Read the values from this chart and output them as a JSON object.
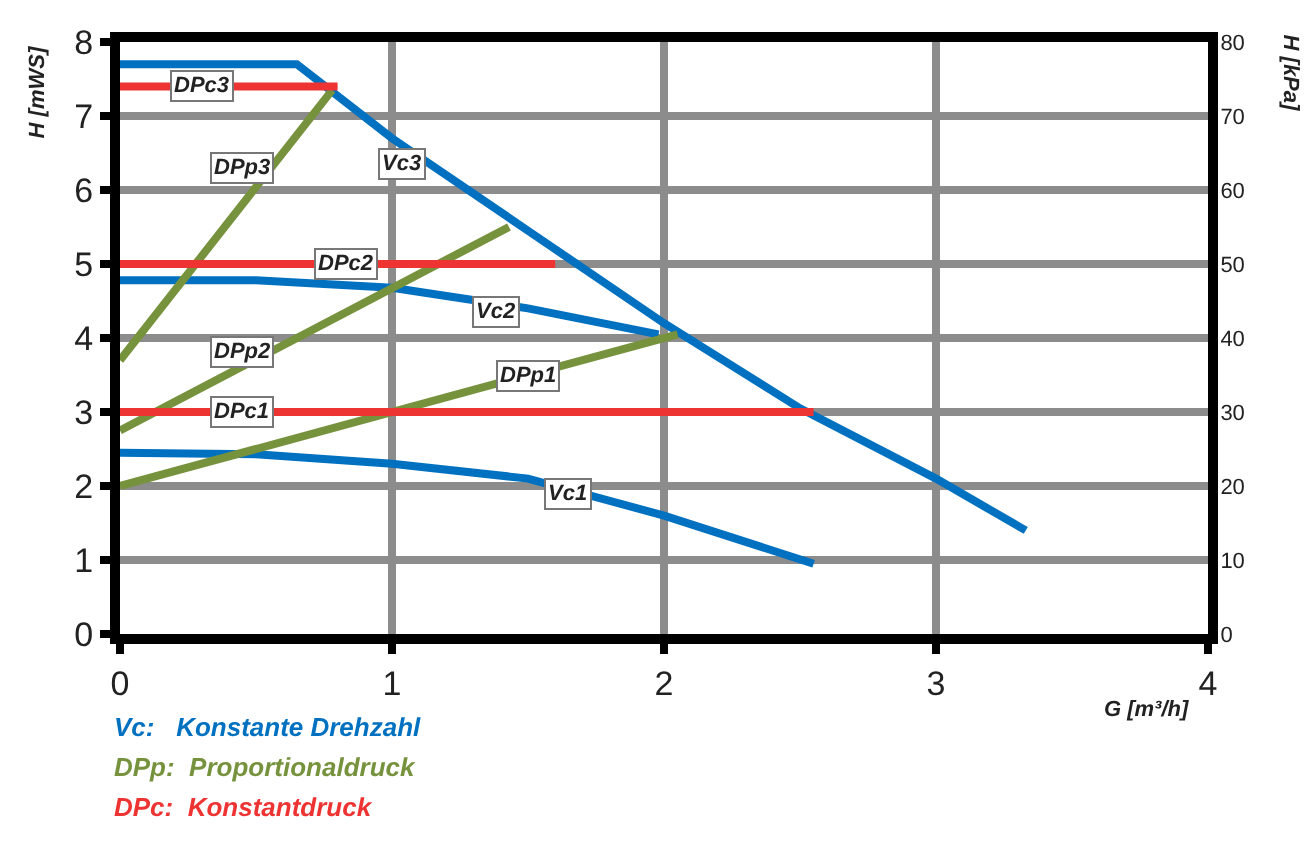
{
  "chart_data": {
    "type": "line",
    "xlabel": "G [m³/h]",
    "ylabel": "H [mWS]",
    "y2label": "H [kPa]",
    "xlim": [
      0,
      4
    ],
    "xticks": [
      0,
      1,
      2,
      3,
      4
    ],
    "ylim": [
      0,
      8
    ],
    "yticks": [
      0,
      1,
      2,
      3,
      4,
      5,
      6,
      7,
      8
    ],
    "y2lim": [
      0,
      80
    ],
    "y2ticks": [
      0,
      10,
      20,
      30,
      40,
      50,
      60,
      70,
      80
    ],
    "grid": true,
    "legend": false,
    "line_style": "solid",
    "marker": "none",
    "series": [
      {
        "color": "#0070c0",
        "x": [
          0,
          0.65,
          1.0,
          1.5,
          2.0,
          2.5,
          3.0,
          3.33
        ],
        "values": [
          7.7,
          7.7,
          6.7,
          5.45,
          4.2,
          3.05,
          2.1,
          1.4
        ]
      },
      {
        "color": "#0070c0",
        "x": [
          0,
          0.5,
          1.0,
          1.5,
          1.98
        ],
        "values": [
          4.78,
          4.78,
          4.68,
          4.4,
          4.05
        ]
      },
      {
        "color": "#0070c0",
        "x": [
          0,
          0.5,
          1.0,
          1.5,
          2.0,
          2.55
        ],
        "values": [
          2.45,
          2.43,
          2.3,
          2.1,
          1.6,
          0.95
        ]
      },
      {
        "color": "#76923c",
        "x": [
          0,
          0.78
        ],
        "values": [
          3.7,
          7.35
        ]
      },
      {
        "color": "#76923c",
        "x": [
          0,
          1.43
        ],
        "values": [
          2.75,
          5.5
        ]
      },
      {
        "color": "#76923c",
        "x": [
          0,
          2.05
        ],
        "values": [
          2.0,
          4.05
        ]
      },
      {
        "color": "#ee3333",
        "x": [
          0,
          0.8
        ],
        "values": [
          7.4,
          7.4
        ]
      },
      {
        "color": "#ee3333",
        "x": [
          0,
          1.6
        ],
        "values": [
          5.0,
          5.0
        ]
      },
      {
        "color": "#ee3333",
        "x": [
          0,
          2.55
        ],
        "values": [
          3.0,
          3.0
        ]
      }
    ],
    "annotations": [
      {
        "text": "DPc3",
        "x": 0.3,
        "y": 7.4
      },
      {
        "text": "Vc3",
        "x": 1.04,
        "y": 6.35
      },
      {
        "text": "DPp3",
        "x": 0.45,
        "y": 6.3
      },
      {
        "text": "DPc2",
        "x": 0.83,
        "y": 5.0
      },
      {
        "text": "Vc2",
        "x": 1.38,
        "y": 4.35
      },
      {
        "text": "DPp2",
        "x": 0.45,
        "y": 3.8
      },
      {
        "text": "DPp1",
        "x": 1.5,
        "y": 3.5
      },
      {
        "text": "DPc1",
        "x": 0.45,
        "y": 3.0
      },
      {
        "text": "Vc1",
        "x": 1.65,
        "y": 1.9
      },
      "Vc:   Konstante Drehzahl",
      "DPp:  Proportionaldruck",
      "DPc:  Konstantdruck"
    ]
  }
}
